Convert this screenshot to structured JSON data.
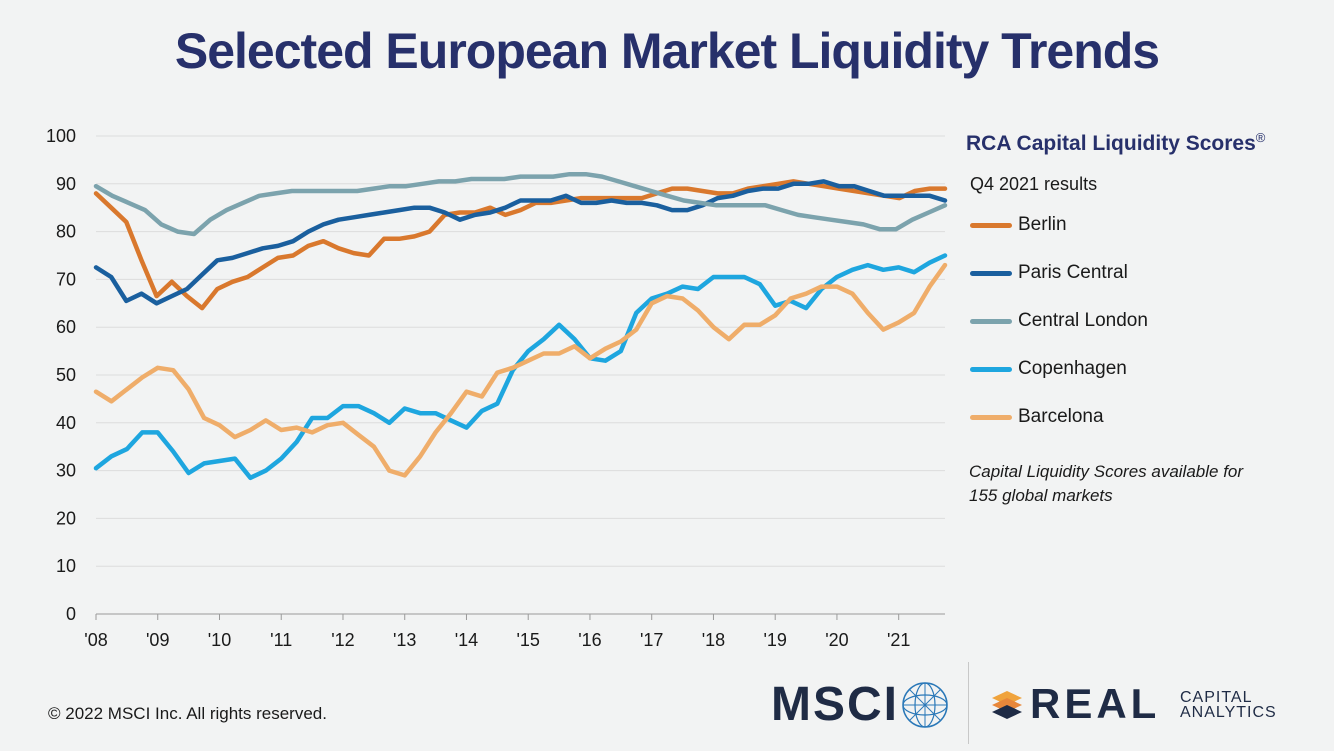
{
  "title": "Selected European Market Liquidity Trends",
  "legend": {
    "title": "RCA Capital Liquidity Scores",
    "title_mark": "®",
    "subtitle": "Q4 2021 results"
  },
  "note": "Capital Liquidity Scores available for 155 global markets",
  "copyright": "© 2022 MSCI Inc. All rights reserved.",
  "logos": {
    "msci": "MSCI",
    "real": "REAL",
    "capital": "CAPITAL",
    "analytics": "ANALYTICS"
  },
  "chart_data": {
    "type": "line",
    "title": "Selected European Market Liquidity Trends",
    "xlabel": "",
    "ylabel": "",
    "ylim": [
      0,
      100
    ],
    "yticks": [
      0,
      10,
      20,
      30,
      40,
      50,
      60,
      70,
      80,
      90,
      100
    ],
    "xlim": [
      2008,
      2021.75
    ],
    "xticks": [
      {
        "value": 2008,
        "label": "'08"
      },
      {
        "value": 2009,
        "label": "'09"
      },
      {
        "value": 2010,
        "label": "'10"
      },
      {
        "value": 2011,
        "label": "'11"
      },
      {
        "value": 2012,
        "label": "'12"
      },
      {
        "value": 2013,
        "label": "'13"
      },
      {
        "value": 2014,
        "label": "'14"
      },
      {
        "value": 2015,
        "label": "'15"
      },
      {
        "value": 2016,
        "label": "'16"
      },
      {
        "value": 2017,
        "label": "'17"
      },
      {
        "value": 2018,
        "label": "'18"
      },
      {
        "value": 2019,
        "label": "'19"
      },
      {
        "value": 2020,
        "label": "'20"
      },
      {
        "value": 2021,
        "label": "'21"
      }
    ],
    "x_frequency": "quarterly",
    "x_start": 2008,
    "grid": "horizontal",
    "legend_position": "right",
    "series": [
      {
        "name": "Berlin",
        "color": "#d9782d",
        "values": [
          88,
          85,
          82,
          74,
          66.5,
          69.5,
          66.5,
          64,
          68,
          69.5,
          70.5,
          72.5,
          74.5,
          75,
          77,
          78,
          76.5,
          75.5,
          75,
          78.5,
          78.5,
          79,
          80,
          83.5,
          84,
          84,
          85,
          83.5,
          84.5,
          86,
          86,
          86.5,
          87,
          87,
          87,
          87,
          87,
          88,
          89,
          89,
          88.5,
          88,
          88,
          89,
          89.5,
          90,
          90.5,
          90,
          89.5,
          89,
          88.5,
          88,
          87.5,
          87,
          88.5,
          89,
          89
        ]
      },
      {
        "name": "Paris Central",
        "color": "#1a5f9e",
        "values": [
          72.5,
          70.5,
          65.5,
          67,
          65,
          66.5,
          68,
          71,
          74,
          74.5,
          75.5,
          76.5,
          77,
          78,
          80,
          81.5,
          82.5,
          83,
          83.5,
          84,
          84.5,
          85,
          85,
          84,
          82.5,
          83.5,
          84,
          85,
          86.5,
          86.5,
          86.5,
          87.5,
          86,
          86,
          86.5,
          86,
          86,
          85.5,
          84.5,
          84.5,
          85.5,
          87,
          87.5,
          88.5,
          89,
          89,
          90,
          90,
          90.5,
          89.5,
          89.5,
          88.5,
          87.5,
          87.5,
          87.5,
          87.5,
          86.5
        ]
      },
      {
        "name": "Central London",
        "color": "#7ca3ad",
        "values": [
          89.5,
          87.5,
          86,
          84.5,
          81.5,
          80,
          79.5,
          82.5,
          84.5,
          86,
          87.5,
          88,
          88.5,
          88.5,
          88.5,
          88.5,
          88.5,
          89,
          89.5,
          89.5,
          90,
          90.5,
          90.5,
          91,
          91,
          91,
          91.5,
          91.5,
          91.5,
          92,
          92,
          91.5,
          90.5,
          89.5,
          88.5,
          87.5,
          86.5,
          86,
          85.5,
          85.5,
          85.5,
          85.5,
          84.5,
          83.5,
          83,
          82.5,
          82,
          81.5,
          80.5,
          80.5,
          82.5,
          84,
          85.5
        ]
      },
      {
        "name": "Copenhagen",
        "color": "#1ea6df",
        "values": [
          30.5,
          33,
          34.5,
          38,
          38,
          34,
          29.5,
          31.5,
          32,
          32.5,
          28.5,
          30,
          32.5,
          36,
          41,
          41,
          43.5,
          43.5,
          42,
          40,
          43,
          42,
          42,
          40.5,
          39,
          42.5,
          44,
          51,
          55,
          57.5,
          60.5,
          57.5,
          53.5,
          53,
          55,
          63,
          66,
          67,
          68.5,
          68,
          70.5,
          70.5,
          70.5,
          69,
          64.5,
          65.5,
          64,
          68,
          70.5,
          72,
          73,
          72,
          72.5,
          71.5,
          73.5,
          75
        ]
      },
      {
        "name": "Barcelona",
        "color": "#efad6a",
        "values": [
          46.5,
          44.5,
          47,
          49.5,
          51.5,
          51,
          47,
          41,
          39.5,
          37,
          38.5,
          40.5,
          38.5,
          39,
          38,
          39.5,
          40,
          37.5,
          35,
          30,
          29,
          33,
          38,
          42,
          46.5,
          45.5,
          50.5,
          51.5,
          53,
          54.5,
          54.5,
          56,
          53.5,
          55.5,
          57,
          59.5,
          65,
          66.5,
          66,
          63.5,
          60,
          57.5,
          60.5,
          60.5,
          62.5,
          66,
          67,
          68.5,
          68.5,
          67,
          63,
          59.5,
          61,
          63,
          68.5,
          73
        ]
      }
    ]
  }
}
